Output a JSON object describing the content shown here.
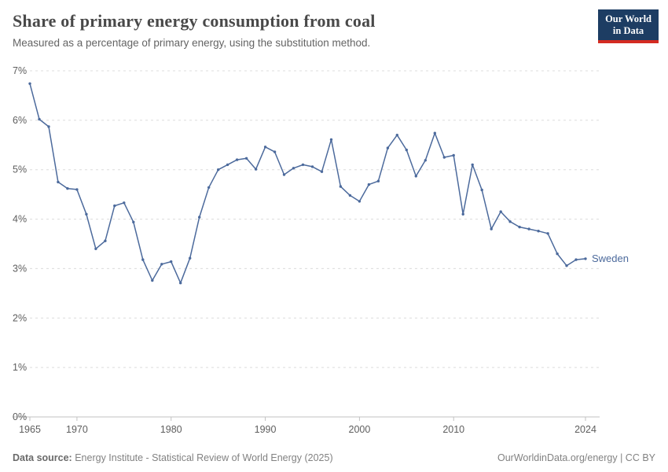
{
  "header": {
    "title": "Share of primary energy consumption from coal",
    "subtitle": "Measured as a percentage of primary energy, using the substitution method.",
    "logo": {
      "line1": "Our World",
      "line2": "in Data"
    }
  },
  "colors": {
    "series": "#4C6A9C",
    "logo_bg": "#1D3D63",
    "logo_accent": "#D42B21",
    "grid": "#dcdcdc",
    "axis": "#c2c2c2"
  },
  "chart_data": {
    "type": "line",
    "title": "Share of primary energy consumption from coal",
    "xlabel": "",
    "ylabel": "",
    "grid": "horizontal-dashed",
    "legend_position": "end-of-line",
    "xlim": [
      1965,
      2024
    ],
    "ylim": [
      0,
      7
    ],
    "y_ticks": [
      {
        "value": 0,
        "label": "0%"
      },
      {
        "value": 1,
        "label": "1%"
      },
      {
        "value": 2,
        "label": "2%"
      },
      {
        "value": 3,
        "label": "3%"
      },
      {
        "value": 4,
        "label": "4%"
      },
      {
        "value": 5,
        "label": "5%"
      },
      {
        "value": 6,
        "label": "6%"
      },
      {
        "value": 7,
        "label": "7%"
      }
    ],
    "x_ticks": [
      {
        "value": 1965,
        "label": "1965"
      },
      {
        "value": 1970,
        "label": "1970"
      },
      {
        "value": 1980,
        "label": "1980"
      },
      {
        "value": 1990,
        "label": "1990"
      },
      {
        "value": 2000,
        "label": "2000"
      },
      {
        "value": 2010,
        "label": "2010"
      },
      {
        "value": 2024,
        "label": "2024"
      }
    ],
    "series": [
      {
        "name": "Sweden",
        "color": "#4C6A9C",
        "x": [
          1965,
          1966,
          1967,
          1968,
          1969,
          1970,
          1971,
          1972,
          1973,
          1974,
          1975,
          1976,
          1977,
          1978,
          1979,
          1980,
          1981,
          1982,
          1983,
          1984,
          1985,
          1986,
          1987,
          1988,
          1989,
          1990,
          1991,
          1992,
          1993,
          1994,
          1995,
          1996,
          1997,
          1998,
          1999,
          2000,
          2001,
          2002,
          2003,
          2004,
          2005,
          2006,
          2007,
          2008,
          2009,
          2010,
          2011,
          2012,
          2013,
          2014,
          2015,
          2016,
          2017,
          2018,
          2019,
          2020,
          2021,
          2022,
          2023,
          2024
        ],
        "values": [
          6.74,
          6.02,
          5.87,
          4.75,
          4.62,
          4.6,
          4.1,
          3.4,
          3.56,
          4.27,
          4.33,
          3.94,
          3.18,
          2.76,
          3.09,
          3.14,
          2.71,
          3.21,
          4.04,
          4.64,
          5.0,
          5.1,
          5.2,
          5.23,
          5.01,
          5.46,
          5.36,
          4.9,
          5.03,
          5.1,
          5.06,
          4.96,
          5.61,
          4.66,
          4.48,
          4.36,
          4.7,
          4.77,
          5.44,
          5.7,
          5.4,
          4.87,
          5.19,
          5.74,
          5.25,
          5.29,
          4.1,
          5.1,
          4.59,
          3.8,
          4.15,
          3.95,
          3.84,
          3.8,
          3.76,
          3.71,
          3.3,
          3.06,
          3.18,
          3.2
        ]
      }
    ]
  },
  "footer": {
    "source_label": "Data source:",
    "source_text": " Energy Institute - Statistical Review of World Energy (2025)",
    "credit": "OurWorldinData.org/energy | CC BY"
  }
}
